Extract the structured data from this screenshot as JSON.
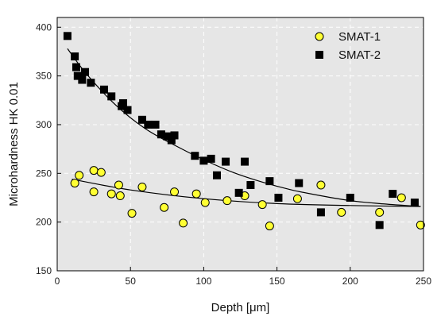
{
  "chart_data": {
    "type": "scatter",
    "xlabel": "Depth [μm]",
    "ylabel": "Microhardness HK 0.01",
    "xlim": [
      0,
      250
    ],
    "ylim": [
      150,
      410
    ],
    "x_ticks": [
      0,
      50,
      100,
      150,
      200,
      250
    ],
    "y_ticks": [
      150,
      200,
      250,
      300,
      350,
      400
    ],
    "grid": true,
    "legend_position": "top-right",
    "background_color": "#e6e6e6",
    "series": [
      {
        "name": "SMAT-1",
        "marker": "circle",
        "color": "#ffff33",
        "edge_color": "#000000",
        "points": [
          [
            12,
            240
          ],
          [
            15,
            248
          ],
          [
            25,
            231
          ],
          [
            25,
            253
          ],
          [
            30,
            251
          ],
          [
            37,
            229
          ],
          [
            42,
            238
          ],
          [
            43,
            227
          ],
          [
            51,
            209
          ],
          [
            58,
            236
          ],
          [
            73,
            215
          ],
          [
            80,
            231
          ],
          [
            86,
            199
          ],
          [
            95,
            229
          ],
          [
            101,
            220
          ],
          [
            116,
            222
          ],
          [
            128,
            227
          ],
          [
            140,
            218
          ],
          [
            145,
            196
          ],
          [
            164,
            224
          ],
          [
            180,
            238
          ],
          [
            194,
            210
          ],
          [
            220,
            210
          ],
          [
            235,
            225
          ],
          [
            248,
            197
          ]
        ],
        "fit": [
          [
            10,
            244
          ],
          [
            50,
            233
          ],
          [
            100,
            224
          ],
          [
            150,
            219
          ],
          [
            200,
            217
          ],
          [
            248,
            216
          ]
        ]
      },
      {
        "name": "SMAT-2",
        "marker": "square",
        "color": "#000000",
        "edge_color": "#000000",
        "points": [
          [
            7,
            391
          ],
          [
            12,
            370
          ],
          [
            13,
            359
          ],
          [
            14,
            350
          ],
          [
            17,
            346
          ],
          [
            19,
            354
          ],
          [
            23,
            343
          ],
          [
            32,
            336
          ],
          [
            37,
            329
          ],
          [
            44,
            319
          ],
          [
            45,
            322
          ],
          [
            48,
            315
          ],
          [
            58,
            305
          ],
          [
            62,
            300
          ],
          [
            67,
            300
          ],
          [
            71,
            290
          ],
          [
            75,
            288
          ],
          [
            78,
            284
          ],
          [
            80,
            289
          ],
          [
            94,
            268
          ],
          [
            100,
            263
          ],
          [
            105,
            265
          ],
          [
            109,
            248
          ],
          [
            115,
            262
          ],
          [
            124,
            230
          ],
          [
            128,
            262
          ],
          [
            132,
            238
          ],
          [
            145,
            242
          ],
          [
            151,
            225
          ],
          [
            165,
            240
          ],
          [
            180,
            210
          ],
          [
            200,
            225
          ],
          [
            220,
            197
          ],
          [
            229,
            229
          ],
          [
            244,
            220
          ]
        ],
        "fit": [
          [
            7,
            378
          ],
          [
            20,
            352
          ],
          [
            40,
            320
          ],
          [
            60,
            296
          ],
          [
            80,
            279
          ],
          [
            100,
            264
          ],
          [
            120,
            251
          ],
          [
            140,
            241
          ],
          [
            160,
            233
          ],
          [
            180,
            227
          ],
          [
            200,
            222
          ],
          [
            220,
            219
          ],
          [
            248,
            216
          ]
        ]
      }
    ]
  }
}
